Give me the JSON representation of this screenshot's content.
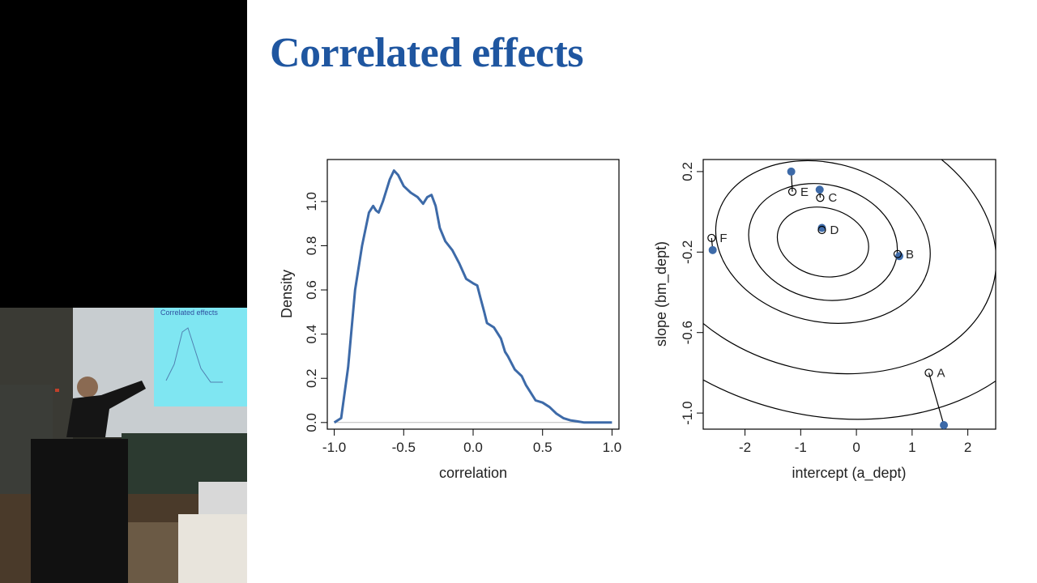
{
  "slide": {
    "title": "Correlated effects"
  },
  "inset": {
    "projected_title": "Correlated effects"
  },
  "chart_data": [
    {
      "type": "line",
      "xlabel": "correlation",
      "ylabel": "Density",
      "xlim": [
        -1.05,
        1.05
      ],
      "ylim": [
        -0.03,
        1.19
      ],
      "xticks": [
        -1.0,
        -0.5,
        0.0,
        0.5,
        1.0
      ],
      "xtick_labels": [
        "-1.0",
        "-0.5",
        "0.0",
        "0.5",
        "1.0"
      ],
      "yticks": [
        0.0,
        0.2,
        0.4,
        0.6,
        0.8,
        1.0
      ],
      "ytick_labels": [
        "0.0",
        "0.2",
        "0.4",
        "0.6",
        "0.8",
        "1.0"
      ],
      "baseline": 0,
      "series": [
        {
          "color": "#3d6aa8",
          "x": [
            -1.0,
            -0.95,
            -0.9,
            -0.85,
            -0.8,
            -0.75,
            -0.72,
            -0.7,
            -0.68,
            -0.65,
            -0.6,
            -0.57,
            -0.54,
            -0.5,
            -0.45,
            -0.4,
            -0.36,
            -0.33,
            -0.3,
            -0.27,
            -0.24,
            -0.2,
            -0.15,
            -0.1,
            -0.05,
            0.0,
            0.03,
            0.05,
            0.08,
            0.1,
            0.15,
            0.2,
            0.23,
            0.25,
            0.3,
            0.35,
            0.38,
            0.4,
            0.45,
            0.5,
            0.55,
            0.6,
            0.65,
            0.7,
            0.75,
            0.8,
            0.9,
            1.0
          ],
          "y": [
            0.0,
            0.02,
            0.25,
            0.6,
            0.8,
            0.95,
            0.98,
            0.96,
            0.95,
            1.0,
            1.1,
            1.14,
            1.12,
            1.07,
            1.04,
            1.02,
            0.99,
            1.02,
            1.03,
            0.98,
            0.88,
            0.82,
            0.78,
            0.72,
            0.65,
            0.63,
            0.62,
            0.57,
            0.5,
            0.45,
            0.43,
            0.38,
            0.32,
            0.3,
            0.24,
            0.21,
            0.17,
            0.15,
            0.1,
            0.09,
            0.07,
            0.04,
            0.02,
            0.01,
            0.005,
            0.0,
            0.0,
            0.0
          ]
        }
      ]
    },
    {
      "type": "scatter",
      "xlabel": "intercept (a_dept)",
      "ylabel": "slope (bm_dept)",
      "xlim": [
        -2.75,
        2.5
      ],
      "ylim": [
        -1.08,
        0.26
      ],
      "xticks": [
        -2,
        -1,
        0,
        1,
        2
      ],
      "xtick_labels": [
        "-2",
        "-1",
        "0",
        "1",
        "2"
      ],
      "yticks": [
        0.2,
        -0.2,
        -0.6,
        -1.0
      ],
      "ytick_labels": [
        "0.2",
        "-0.2",
        "-0.6",
        "-1.0"
      ],
      "contours": {
        "center": [
          -0.6,
          -0.15
        ],
        "semi_axes": [
          [
            0.83,
            0.17
          ],
          [
            1.35,
            0.285
          ],
          [
            1.95,
            0.395
          ],
          [
            3.15,
            0.64
          ],
          [
            4.3,
            0.86
          ]
        ],
        "rotation_deg": -13.5
      },
      "points": [
        {
          "label": "A",
          "open": [
            1.3,
            -0.8
          ],
          "filled": [
            1.57,
            -1.06
          ]
        },
        {
          "label": "B",
          "open": [
            0.74,
            -0.21
          ],
          "filled": [
            0.77,
            -0.22
          ]
        },
        {
          "label": "C",
          "open": [
            -0.65,
            0.07
          ],
          "filled": [
            -0.66,
            0.11
          ]
        },
        {
          "label": "D",
          "open": [
            -0.62,
            -0.09
          ],
          "filled": [
            -0.62,
            -0.08
          ]
        },
        {
          "label": "E",
          "open": [
            -1.15,
            0.1
          ],
          "filled": [
            -1.17,
            0.2
          ]
        },
        {
          "label": "F",
          "open": [
            -2.6,
            -0.13
          ],
          "filled": [
            -2.58,
            -0.19
          ]
        }
      ]
    }
  ]
}
